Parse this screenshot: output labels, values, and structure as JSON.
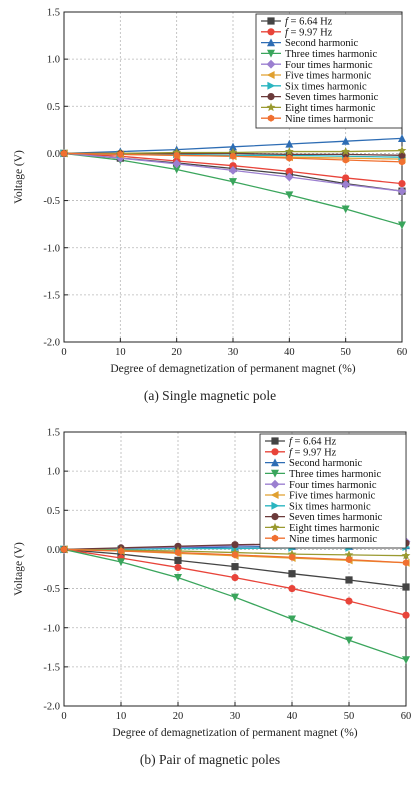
{
  "chart_data": [
    {
      "type": "line",
      "caption": "(a) Single magnetic pole",
      "xlabel": "Degree of demagnetization of permanent magnet (%)",
      "ylabel": "Voltage (V)",
      "xlim": [
        0,
        60
      ],
      "ylim": [
        -2.0,
        1.5
      ],
      "xticks": [
        "0",
        "10",
        "20",
        "30",
        "40",
        "50",
        "60"
      ],
      "yticks": [
        "1.5",
        "1.0",
        "0.5",
        "0.0",
        "-0.5",
        "-1.0",
        "-1.5",
        "-2.0"
      ],
      "grid": true,
      "legend_position": "top-right",
      "x": [
        0,
        10,
        20,
        30,
        40,
        50,
        60
      ],
      "series": [
        {
          "name_prefix": "f",
          "name": " = 6.64 Hz",
          "color": "#444444",
          "marker": "square",
          "values": [
            0,
            -0.05,
            -0.1,
            -0.16,
            -0.22,
            -0.32,
            -0.4
          ]
        },
        {
          "name_prefix": "f",
          "name": " = 9.97 Hz",
          "color": "#e8443a",
          "marker": "circle",
          "values": [
            0,
            -0.03,
            -0.08,
            -0.13,
            -0.19,
            -0.26,
            -0.32
          ]
        },
        {
          "name": "Second harmonic",
          "color": "#2e6db4",
          "marker": "triangle-up",
          "values": [
            0,
            0.02,
            0.04,
            0.07,
            0.1,
            0.13,
            0.16
          ]
        },
        {
          "name": "Three times harmonic",
          "color": "#3aa55c",
          "marker": "triangle-down",
          "values": [
            0,
            -0.07,
            -0.17,
            -0.3,
            -0.44,
            -0.59,
            -0.76
          ]
        },
        {
          "name": "Four times harmonic",
          "color": "#9b7fd0",
          "marker": "diamond",
          "values": [
            0,
            -0.05,
            -0.11,
            -0.18,
            -0.25,
            -0.33,
            -0.4
          ]
        },
        {
          "name": "Five times harmonic",
          "color": "#e0a030",
          "marker": "triangle-left",
          "values": [
            0,
            -0.01,
            -0.02,
            -0.03,
            -0.04,
            -0.05,
            -0.06
          ]
        },
        {
          "name": "Six times harmonic",
          "color": "#2ab5c0",
          "marker": "triangle-right",
          "values": [
            0,
            -0.01,
            -0.01,
            -0.02,
            -0.02,
            -0.03,
            -0.04
          ]
        },
        {
          "name": "Seven times harmonic",
          "color": "#6b3a3a",
          "marker": "circle",
          "values": [
            0,
            0.0,
            0.0,
            0.0,
            -0.01,
            -0.01,
            -0.02
          ]
        },
        {
          "name": "Eight times harmonic",
          "color": "#9a9a30",
          "marker": "star",
          "values": [
            0,
            0.0,
            0.01,
            0.01,
            0.02,
            0.02,
            0.03
          ]
        },
        {
          "name": "Nine times harmonic",
          "color": "#f07030",
          "marker": "hexagon",
          "values": [
            0,
            -0.01,
            -0.02,
            -0.03,
            -0.05,
            -0.07,
            -0.09
          ]
        }
      ]
    },
    {
      "type": "line",
      "caption": "(b) Pair of magnetic poles",
      "xlabel": "Degree of demagnetization of permanent magnet (%)",
      "ylabel": "Voltage (V)",
      "xlim": [
        0,
        60
      ],
      "ylim": [
        -2.0,
        1.5
      ],
      "xticks": [
        "0",
        "10",
        "20",
        "30",
        "40",
        "50",
        "60"
      ],
      "yticks": [
        "1.5",
        "1.0",
        "0.5",
        "0.0",
        "-0.5",
        "-1.0",
        "-1.5",
        "-2.0"
      ],
      "grid": true,
      "legend_position": "top-right",
      "x": [
        0,
        10,
        20,
        30,
        40,
        50,
        60
      ],
      "series": [
        {
          "name_prefix": "f",
          "name": " = 6.64 Hz",
          "color": "#444444",
          "marker": "square",
          "values": [
            0,
            -0.06,
            -0.14,
            -0.22,
            -0.31,
            -0.39,
            -0.48
          ]
        },
        {
          "name_prefix": "f",
          "name": " = 9.97 Hz",
          "color": "#e8443a",
          "marker": "circle",
          "values": [
            0,
            -0.11,
            -0.23,
            -0.36,
            -0.5,
            -0.66,
            -0.84
          ]
        },
        {
          "name": "Second harmonic",
          "color": "#2e6db4",
          "marker": "triangle-up",
          "values": [
            0,
            0.01,
            0.02,
            0.03,
            0.04,
            0.04,
            0.05
          ]
        },
        {
          "name": "Three times harmonic",
          "color": "#3aa55c",
          "marker": "triangle-down",
          "values": [
            0,
            -0.16,
            -0.36,
            -0.61,
            -0.89,
            -1.16,
            -1.41
          ]
        },
        {
          "name": "Four times harmonic",
          "color": "#9b7fd0",
          "marker": "diamond",
          "values": [
            0,
            0.01,
            0.03,
            0.05,
            0.07,
            0.09,
            0.1
          ]
        },
        {
          "name": "Five times harmonic",
          "color": "#e0a030",
          "marker": "triangle-left",
          "values": [
            0,
            -0.02,
            -0.05,
            -0.08,
            -0.11,
            -0.14,
            -0.17
          ]
        },
        {
          "name": "Six times harmonic",
          "color": "#2ab5c0",
          "marker": "triangle-right",
          "values": [
            0,
            0.0,
            0.01,
            0.01,
            0.02,
            0.02,
            0.03
          ]
        },
        {
          "name": "Seven times harmonic",
          "color": "#6b3a3a",
          "marker": "circle",
          "values": [
            0,
            0.02,
            0.04,
            0.06,
            0.07,
            0.08,
            0.08
          ]
        },
        {
          "name": "Eight times harmonic",
          "color": "#9a9a30",
          "marker": "star",
          "values": [
            0,
            -0.01,
            -0.02,
            -0.04,
            -0.06,
            -0.07,
            -0.08
          ]
        },
        {
          "name": "Nine times harmonic",
          "color": "#f07030",
          "marker": "hexagon",
          "values": [
            0,
            -0.02,
            -0.04,
            -0.07,
            -0.1,
            -0.13,
            -0.17
          ]
        }
      ]
    }
  ]
}
